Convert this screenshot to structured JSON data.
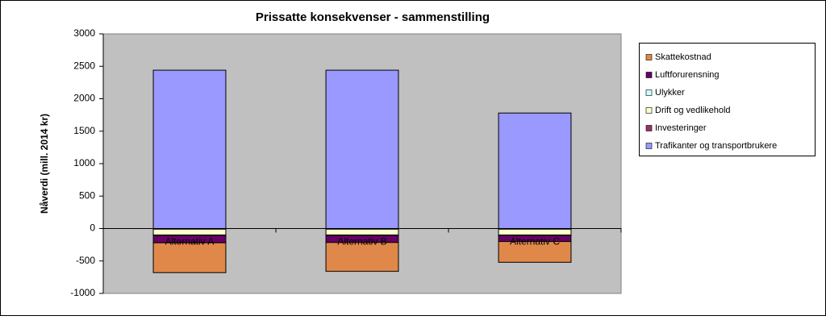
{
  "chart_data": {
    "type": "stacked_bar",
    "title": "Prissatte konsekvenser - sammenstilling",
    "y_label": "Nåverdi (mill. 2014 kr)",
    "categories": [
      "Alternativ A",
      "Alternativ B",
      "Alternativ C"
    ],
    "series": [
      {
        "name": "Trafikanter og transportbrukere",
        "color": "#9999ff",
        "values": [
          2440,
          2440,
          1780
        ]
      },
      {
        "name": "Investeringer",
        "color": "#993366",
        "values": [
          -10,
          -10,
          -10
        ]
      },
      {
        "name": "Drift og vedlikehold",
        "color": "#ffffcc",
        "values": [
          -90,
          -90,
          -90
        ]
      },
      {
        "name": "Ulykker",
        "color": "#ccffff",
        "values": [
          -5,
          -5,
          -5
        ]
      },
      {
        "name": "Luftforurensning",
        "color": "#660066",
        "values": [
          -115,
          -110,
          -95
        ]
      },
      {
        "name": "Skattekostnad",
        "color": "#e0884a",
        "values": [
          -460,
          -445,
          -320
        ]
      }
    ],
    "ylim": [
      -1000,
      3000
    ],
    "yticks": [
      -1000,
      -500,
      0,
      500,
      1000,
      1500,
      2000,
      2500,
      3000
    ],
    "grid": false,
    "legend": "right"
  }
}
